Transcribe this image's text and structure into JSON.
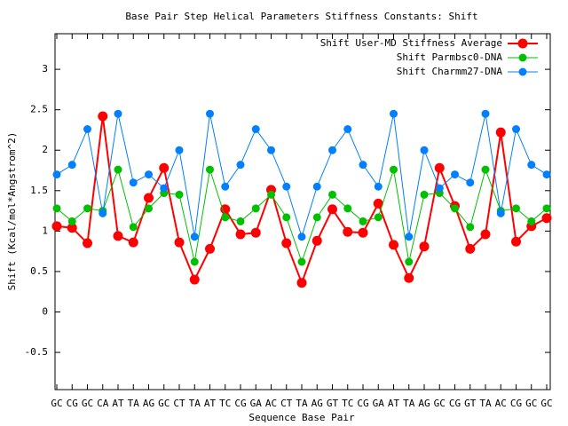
{
  "chart_data": {
    "type": "line",
    "title": "Base Pair Step Helical Parameters Stiffness Constants: Shift",
    "x_label": "Sequence Base Pair",
    "y_label": "Shift (Kcal/mol*Angstrom^2)",
    "categories": [
      "GC",
      "CG",
      "GC",
      "CA",
      "AT",
      "TA",
      "AG",
      "GC",
      "CT",
      "TA",
      "AT",
      "TC",
      "CG",
      "GA",
      "AC",
      "CT",
      "TA",
      "AG",
      "GT",
      "TC",
      "CG",
      "GA",
      "AT",
      "TA",
      "AG",
      "GC",
      "CG",
      "GT",
      "TA",
      "AC",
      "CG",
      "GC",
      "GC"
    ],
    "series": [
      {
        "name": "Shift User-MD Stiffness Average",
        "color": "#ff0000",
        "values": [
          1.06,
          1.04,
          0.85,
          2.42,
          0.94,
          0.86,
          1.41,
          1.78,
          0.86,
          0.4,
          0.78,
          1.27,
          0.96,
          0.98,
          1.51,
          0.85,
          0.36,
          0.88,
          1.27,
          0.99,
          0.98,
          1.34,
          0.83,
          0.42,
          0.81,
          1.78,
          1.31,
          0.78,
          0.96,
          2.22,
          0.87,
          1.06,
          1.16
        ]
      },
      {
        "name": "Shift Parmbsc0-DNA",
        "color": "#00c000",
        "values": [
          1.28,
          1.12,
          1.28,
          1.25,
          1.76,
          1.05,
          1.28,
          1.47,
          1.45,
          0.62,
          1.76,
          1.17,
          1.12,
          1.28,
          1.45,
          1.17,
          0.62,
          1.17,
          1.45,
          1.28,
          1.12,
          1.17,
          1.76,
          0.62,
          1.45,
          1.47,
          1.28,
          1.05,
          1.76,
          1.25,
          1.28,
          1.12,
          1.28
        ]
      },
      {
        "name": "Shift Charmm27-DNA",
        "color": "#0080ff",
        "values": [
          1.7,
          1.82,
          2.26,
          1.22,
          2.45,
          1.6,
          1.7,
          1.53,
          2.0,
          0.93,
          2.45,
          1.55,
          1.82,
          2.26,
          2.0,
          1.55,
          0.93,
          1.55,
          2.0,
          2.26,
          1.82,
          1.55,
          2.45,
          0.93,
          2.0,
          1.53,
          1.7,
          1.6,
          2.45,
          1.22,
          2.26,
          1.82,
          1.7
        ]
      }
    ],
    "ylim": [
      -0.96,
      3.44
    ],
    "yticks": [
      -0.5,
      0,
      0.5,
      1,
      1.5,
      2,
      2.5,
      3
    ],
    "legend": "top-right"
  }
}
